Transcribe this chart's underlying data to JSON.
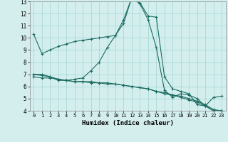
{
  "xlabel": "Humidex (Indice chaleur)",
  "xlim": [
    -0.5,
    23.5
  ],
  "ylim": [
    4,
    13
  ],
  "yticks": [
    4,
    5,
    6,
    7,
    8,
    9,
    10,
    11,
    12,
    13
  ],
  "xticks": [
    0,
    1,
    2,
    3,
    4,
    5,
    6,
    7,
    8,
    9,
    10,
    11,
    12,
    13,
    14,
    15,
    16,
    17,
    18,
    19,
    20,
    21,
    22,
    23
  ],
  "bg_color": "#d4eeee",
  "grid_color": "#a8d8d8",
  "line_color": "#1a6b60",
  "series": [
    {
      "x": [
        0,
        1,
        2,
        3,
        4,
        5,
        6,
        7,
        8,
        9,
        10,
        11,
        12,
        13,
        14,
        15,
        16,
        17,
        18,
        19,
        20,
        21,
        22,
        23
      ],
      "y": [
        10.3,
        8.7,
        9.0,
        9.3,
        9.5,
        9.7,
        9.8,
        9.9,
        10.0,
        10.1,
        10.2,
        11.2,
        13.3,
        12.9,
        11.8,
        11.7,
        6.8,
        5.8,
        5.6,
        5.4,
        4.5,
        4.4,
        5.1,
        5.2
      ]
    },
    {
      "x": [
        0,
        1,
        2,
        3,
        4,
        5,
        6,
        7,
        8,
        9,
        10,
        11,
        12,
        13,
        14,
        15,
        16,
        17,
        18,
        19,
        20,
        21,
        22,
        23
      ],
      "y": [
        7.0,
        7.0,
        6.8,
        6.5,
        6.5,
        6.6,
        6.7,
        7.3,
        8.0,
        9.2,
        10.2,
        11.5,
        13.3,
        12.8,
        11.5,
        9.2,
        5.7,
        5.1,
        5.4,
        5.3,
        5.0,
        4.4,
        4.0,
        4.0
      ]
    },
    {
      "x": [
        0,
        1,
        2,
        3,
        4,
        5,
        6,
        7,
        8,
        9,
        10,
        11,
        12,
        13,
        14,
        15,
        16,
        17,
        18,
        19,
        20,
        21,
        22,
        23
      ],
      "y": [
        7.0,
        6.9,
        6.8,
        6.6,
        6.5,
        6.4,
        6.4,
        6.4,
        6.3,
        6.3,
        6.2,
        6.1,
        6.0,
        5.9,
        5.8,
        5.6,
        5.5,
        5.3,
        5.2,
        5.0,
        4.8,
        4.5,
        4.1,
        4.0
      ]
    },
    {
      "x": [
        0,
        1,
        2,
        3,
        4,
        5,
        6,
        7,
        8,
        9,
        10,
        11,
        12,
        13,
        14,
        15,
        16,
        17,
        18,
        19,
        20,
        21,
        22,
        23
      ],
      "y": [
        6.8,
        6.7,
        6.7,
        6.6,
        6.5,
        6.4,
        6.4,
        6.3,
        6.3,
        6.2,
        6.2,
        6.1,
        6.0,
        5.9,
        5.8,
        5.6,
        5.4,
        5.3,
        5.1,
        4.9,
        4.7,
        4.4,
        4.0,
        4.0
      ]
    }
  ]
}
